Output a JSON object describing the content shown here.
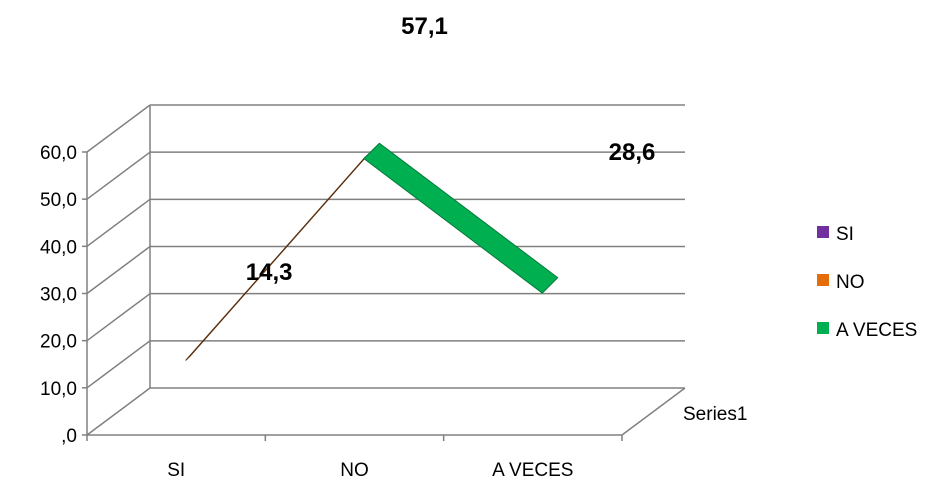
{
  "chart_data": {
    "type": "line",
    "title": "",
    "categories": [
      "SI",
      "NO",
      "A VECES"
    ],
    "series": [
      {
        "name": "Series1",
        "values": [
          14.3,
          57.1,
          28.6
        ]
      }
    ],
    "data_labels": [
      "14,3",
      "57,1",
      "28,6"
    ],
    "y_ticks": [
      ",0",
      "10,0",
      "20,0",
      "30,0",
      "40,0",
      "50,0",
      "60,0"
    ],
    "ylim": [
      0,
      60
    ],
    "depth_axis_label": "Series1",
    "legend": {
      "position": "right",
      "entries": [
        {
          "label": "SI",
          "color": "#7030A0"
        },
        {
          "label": "NO",
          "color": "#E46C0A"
        },
        {
          "label": "A VECES",
          "color": "#00B050"
        }
      ]
    },
    "segment_colors": [
      "#E46C0A",
      "#00B050"
    ],
    "grid": true,
    "style": "3d"
  }
}
